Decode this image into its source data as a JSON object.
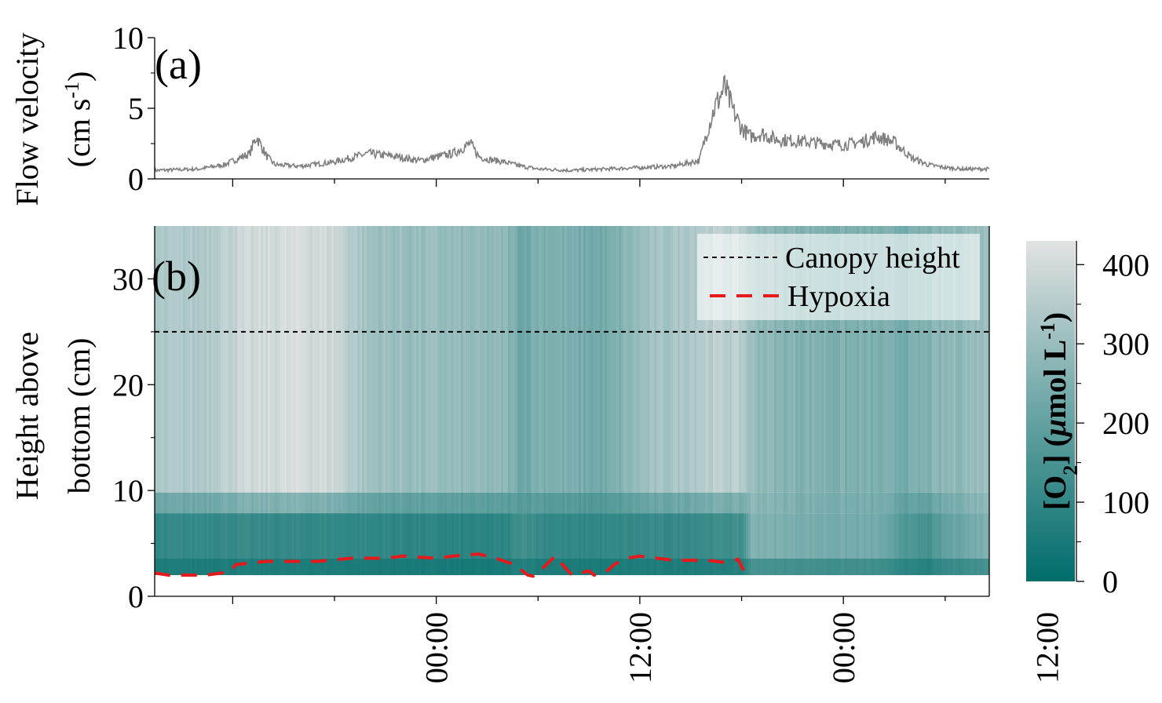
{
  "chart_data": [
    {
      "panel": "(a)",
      "type": "line",
      "ylabel": "Flow velocity (cm s-1)",
      "ylabel_line1": "Flow velocity",
      "ylabel_line2_main": "(cm s",
      "ylabel_line2_sup": "-1",
      "ylabel_line2_end": ")",
      "ylim": [
        0,
        10
      ],
      "yticks": [
        "0",
        "5",
        "10"
      ],
      "ytick_values": [
        0,
        5,
        10
      ],
      "xlim_hours": [
        -16.6,
        32.6
      ],
      "series": [
        {
          "color": "#808080",
          "x_hours": [
            -16.6,
            -14,
            -12.5,
            -11,
            -10.6,
            -10,
            -9.5,
            -8,
            -6,
            -4,
            -2.5,
            -1,
            1,
            2,
            2.5,
            3,
            4,
            5,
            6,
            8,
            10,
            12,
            14,
            15.5,
            16.0,
            16.4,
            17,
            17.5,
            18,
            18.5,
            19.2,
            20,
            22,
            24,
            25,
            26,
            27,
            28,
            29,
            30,
            31,
            32.6
          ],
          "values": [
            0.6,
            0.7,
            1.0,
            1.8,
            3.0,
            1.6,
            1.0,
            0.9,
            1.2,
            1.8,
            1.6,
            1.3,
            1.8,
            2.5,
            1.6,
            1.4,
            1.2,
            0.9,
            0.7,
            0.6,
            0.7,
            0.8,
            0.9,
            1.3,
            3.5,
            5.0,
            6.5,
            4.8,
            3.6,
            3.0,
            3.2,
            2.8,
            2.6,
            2.4,
            2.6,
            3.0,
            2.6,
            1.5,
            1.0,
            0.8,
            0.7,
            0.7
          ]
        }
      ]
    },
    {
      "panel": "(b)",
      "type": "heatmap",
      "ylabel": "Height above bottom (cm)",
      "ylabel_line1": "Height above",
      "ylabel_line2": "bottom (cm)",
      "ylim": [
        0,
        35
      ],
      "yticks": [
        "0",
        "10",
        "20",
        "30"
      ],
      "ytick_values": [
        0,
        10,
        20,
        30
      ],
      "xlim_hours": [
        -16.6,
        32.6
      ],
      "xticks": [
        "00:00",
        "12:00",
        "00:00",
        "12:00"
      ],
      "xtick_hours": [
        0,
        12,
        24,
        36
      ],
      "colorbar": {
        "label": "[O2] (μmol L-1)",
        "ticks": [
          "0",
          "100",
          "200",
          "300",
          "400"
        ],
        "tick_values": [
          0,
          100,
          200,
          300,
          400
        ],
        "range": [
          0,
          430
        ],
        "color_low": "#006d6a",
        "color_high": "#e2e2e2"
      },
      "canopy_height_cm": 25,
      "legend": {
        "position": "top-right",
        "entries": [
          {
            "label": "Canopy height",
            "color": "#000000",
            "style": "short-dash"
          },
          {
            "label": "Hypoxia",
            "color": "#e41a1c",
            "style": "long-dash"
          }
        ]
      },
      "hypoxia_contour": {
        "x_hours": [
          -16.6,
          -15.8,
          -14,
          -13.6,
          -12.2,
          -11.8,
          -10,
          -7,
          -5,
          -3,
          -2,
          0,
          1,
          2.5,
          3.5,
          4.6,
          5.4,
          5.7,
          6.0,
          7,
          8,
          9,
          9.3,
          10,
          10.5,
          11.2,
          12,
          13,
          14,
          15,
          16,
          17,
          17.8,
          18.0,
          18.3
        ],
        "height_cm": [
          2.2,
          2.0,
          2.0,
          2.0,
          2.3,
          3.0,
          3.3,
          3.3,
          3.6,
          3.6,
          3.8,
          3.6,
          3.8,
          4.0,
          3.6,
          3.0,
          2.0,
          1.9,
          2.2,
          3.8,
          2.0,
          2.4,
          2.0,
          2.3,
          3.0,
          3.6,
          3.8,
          3.6,
          3.4,
          3.4,
          3.4,
          3.2,
          3.5,
          2.8,
          2.0
        ]
      },
      "oxygen_field": {
        "time_hours": [
          -16.6,
          -14,
          -12,
          -10,
          -8,
          -6,
          -4,
          -2,
          0,
          2,
          4,
          5,
          6,
          8,
          10,
          12,
          14,
          16,
          17,
          18,
          18.5,
          20,
          22,
          24,
          26,
          28,
          29,
          30,
          32.6
        ],
        "upper_umol_L": [
          330,
          340,
          380,
          400,
          410,
          390,
          310,
          300,
          295,
          285,
          280,
          220,
          260,
          240,
          230,
          300,
          330,
          360,
          360,
          350,
          300,
          270,
          260,
          250,
          245,
          240,
          260,
          275,
          310
        ],
        "lower_umol_L": [
          100,
          110,
          110,
          110,
          105,
          105,
          100,
          95,
          90,
          85,
          90,
          140,
          110,
          100,
          100,
          110,
          110,
          120,
          125,
          130,
          260,
          250,
          240,
          235,
          230,
          150,
          140,
          200,
          260
        ],
        "bottom_layer_top_cm": 9.8,
        "data_floor_cm": 2
      }
    }
  ]
}
